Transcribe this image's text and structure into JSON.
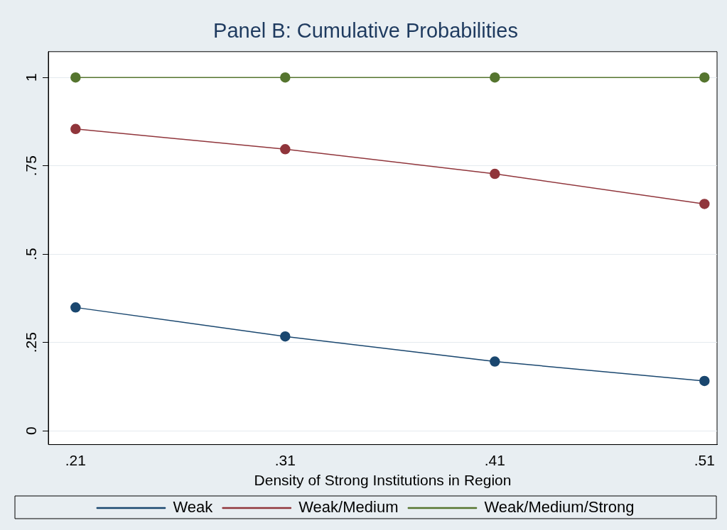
{
  "chart_data": {
    "type": "line",
    "title": "Panel B: Cumulative Probabilities",
    "xlabel": "Density of Strong Institutions in Region",
    "x": [
      0.21,
      0.31,
      0.41,
      0.51
    ],
    "series": [
      {
        "name": "Weak",
        "color": "#1a476f",
        "values": [
          0.349,
          0.267,
          0.196,
          0.141
        ]
      },
      {
        "name": "Weak/Medium",
        "color": "#90353b",
        "values": [
          0.854,
          0.797,
          0.727,
          0.642
        ]
      },
      {
        "name": "Weak/Medium/Strong",
        "color": "#55752f",
        "values": [
          1,
          1,
          1,
          1
        ]
      }
    ],
    "xlim": [
      0.197,
      0.516
    ],
    "xticks": [
      {
        "value": 0.21,
        "label": ".21"
      },
      {
        "value": 0.31,
        "label": ".31"
      },
      {
        "value": 0.41,
        "label": ".41"
      },
      {
        "value": 0.51,
        "label": ".51"
      }
    ],
    "ylim": [
      -0.039,
      1.073
    ],
    "yticks": [
      0,
      {
        "value": 0.25,
        "label": ".25"
      },
      {
        "value": 0.5,
        "label": ".5"
      },
      {
        "value": 0.75,
        "label": ".75"
      },
      1
    ],
    "grid": "y",
    "legend": "bottom",
    "marker": "circle",
    "line_style": "solid"
  }
}
